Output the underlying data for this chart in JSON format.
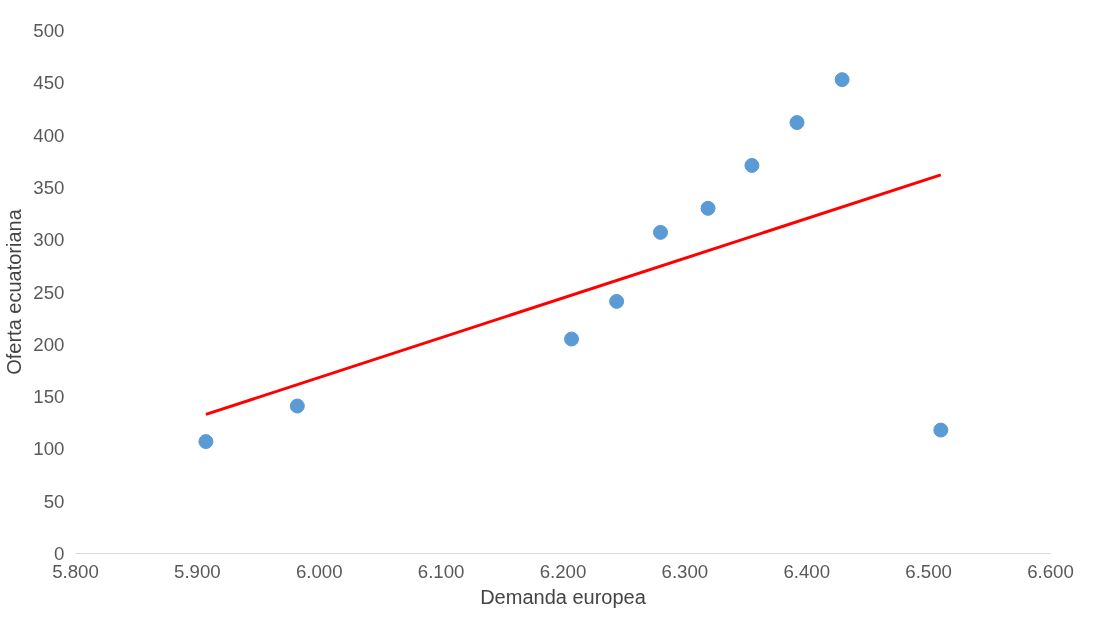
{
  "chart_data": {
    "type": "scatter",
    "xlabel": "Demanda europea",
    "ylabel": "Oferta ecuatoriana",
    "xlim": [
      5800,
      6600
    ],
    "ylim": [
      0,
      500
    ],
    "xticks": [
      {
        "value": 5800,
        "label": "5.800"
      },
      {
        "value": 5900,
        "label": "5.900"
      },
      {
        "value": 6000,
        "label": "6.000"
      },
      {
        "value": 6100,
        "label": "6.100"
      },
      {
        "value": 6200,
        "label": "6.200"
      },
      {
        "value": 6300,
        "label": "6.300"
      },
      {
        "value": 6400,
        "label": "6.400"
      },
      {
        "value": 6500,
        "label": "6.500"
      },
      {
        "value": 6600,
        "label": "6.600"
      }
    ],
    "yticks": [
      0,
      50,
      100,
      150,
      200,
      250,
      300,
      350,
      400,
      450,
      500
    ],
    "grid": false,
    "series": [
      {
        "marker": "circle",
        "color": "#5b9bd5",
        "x": [
          5907,
          5982,
          6207,
          6244,
          6280,
          6319,
          6355,
          6392,
          6429,
          6510
        ],
        "values": [
          107,
          141,
          205,
          241,
          307,
          330,
          371,
          412,
          453,
          118
        ]
      },
      {
        "type": "line",
        "color": "#ff0000",
        "x": [
          5907,
          6510
        ],
        "values": [
          133,
          362
        ]
      }
    ]
  }
}
